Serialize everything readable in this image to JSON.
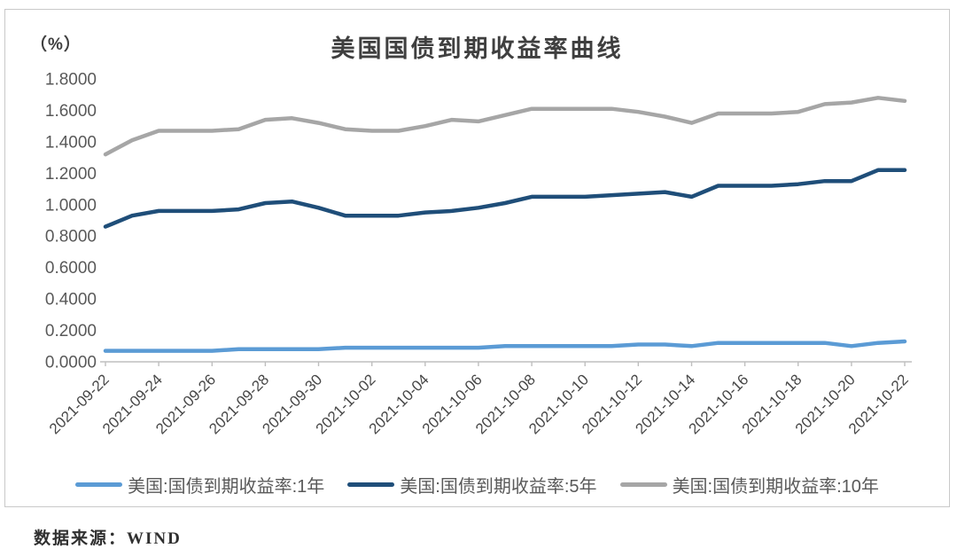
{
  "page": {
    "source_label": "数据来源：WIND"
  },
  "chart": {
    "title": "美国国债到期收益率曲线",
    "unit_label": "（%）",
    "frame_border_color": "#c9c9c9",
    "axis_color": "#bfbfbf"
  },
  "chart_data": {
    "type": "line",
    "title": "美国国债到期收益率曲线",
    "unit": "%",
    "grid": false,
    "legend_position": "bottom",
    "ylim": [
      0,
      1.8
    ],
    "y_ticks": [
      0.0,
      0.2,
      0.4,
      0.6,
      0.8,
      1.0,
      1.2,
      1.4,
      1.6,
      1.8
    ],
    "y_tick_labels": [
      "0.0000",
      "0.2000",
      "0.4000",
      "0.6000",
      "0.8000",
      "1.0000",
      "1.2000",
      "1.4000",
      "1.6000",
      "1.8000"
    ],
    "x_label_every": 2,
    "x": [
      "2021-09-22",
      "2021-09-23",
      "2021-09-24",
      "2021-09-25",
      "2021-09-26",
      "2021-09-27",
      "2021-09-28",
      "2021-09-29",
      "2021-09-30",
      "2021-10-01",
      "2021-10-02",
      "2021-10-03",
      "2021-10-04",
      "2021-10-05",
      "2021-10-06",
      "2021-10-07",
      "2021-10-08",
      "2021-10-09",
      "2021-10-10",
      "2021-10-11",
      "2021-10-12",
      "2021-10-13",
      "2021-10-14",
      "2021-10-15",
      "2021-10-16",
      "2021-10-17",
      "2021-10-18",
      "2021-10-19",
      "2021-10-20",
      "2021-10-21",
      "2021-10-22"
    ],
    "x_tick_labels_shown": [
      "2021-09-22",
      "2021-09-24",
      "2021-09-26",
      "2021-09-28",
      "2021-09-30",
      "2021-10-02",
      "2021-10-04",
      "2021-10-06",
      "2021-10-08",
      "2021-10-10",
      "2021-10-12",
      "2021-10-14",
      "2021-10-16",
      "2021-10-18",
      "2021-10-20",
      "2021-10-22"
    ],
    "series": [
      {
        "id": "1y",
        "name": "美国:国债到期收益率:1年",
        "color": "#5b9bd5",
        "values": [
          0.07,
          0.07,
          0.07,
          0.07,
          0.07,
          0.08,
          0.08,
          0.08,
          0.08,
          0.09,
          0.09,
          0.09,
          0.09,
          0.09,
          0.09,
          0.1,
          0.1,
          0.1,
          0.1,
          0.1,
          0.11,
          0.11,
          0.1,
          0.12,
          0.12,
          0.12,
          0.12,
          0.12,
          0.1,
          0.12,
          0.13
        ]
      },
      {
        "id": "5y",
        "name": "美国:国债到期收益率:5年",
        "color": "#1f4e79",
        "values": [
          0.86,
          0.93,
          0.96,
          0.96,
          0.96,
          0.97,
          1.01,
          1.02,
          0.98,
          0.93,
          0.93,
          0.93,
          0.95,
          0.96,
          0.98,
          1.01,
          1.05,
          1.05,
          1.05,
          1.06,
          1.07,
          1.08,
          1.05,
          1.12,
          1.12,
          1.12,
          1.13,
          1.15,
          1.15,
          1.22,
          1.22
        ]
      },
      {
        "id": "10y",
        "name": "美国:国债到期收益率:10年",
        "color": "#a6a6a6",
        "values": [
          1.32,
          1.41,
          1.47,
          1.47,
          1.47,
          1.48,
          1.54,
          1.55,
          1.52,
          1.48,
          1.47,
          1.47,
          1.5,
          1.54,
          1.53,
          1.57,
          1.61,
          1.61,
          1.61,
          1.61,
          1.59,
          1.56,
          1.52,
          1.58,
          1.58,
          1.58,
          1.59,
          1.64,
          1.65,
          1.68,
          1.66
        ]
      }
    ]
  }
}
